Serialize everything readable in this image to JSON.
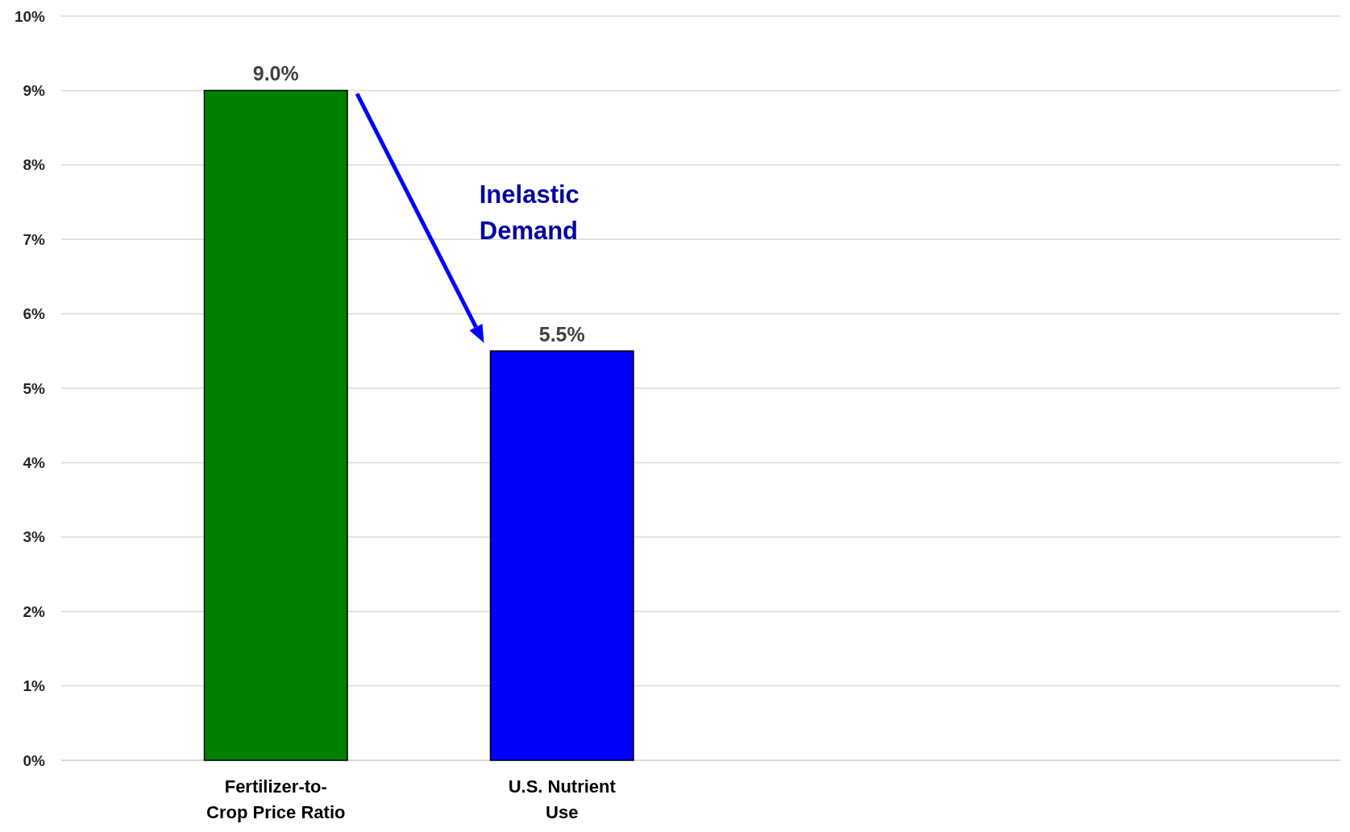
{
  "chart_data": {
    "type": "bar",
    "categories": [
      "Fertilizer-to-\nCrop Price Ratio",
      "U.S. Nutrient\nUse"
    ],
    "values": [
      9.0,
      5.5
    ],
    "colors": [
      "#008000",
      "#0000ff"
    ],
    "value_labels": [
      "9.0%",
      "5.5%"
    ],
    "ylim": [
      0,
      10
    ],
    "yticks": [
      {
        "value": 0,
        "label": "0%"
      },
      {
        "value": 1,
        "label": "1%"
      },
      {
        "value": 2,
        "label": "2%"
      },
      {
        "value": 3,
        "label": "3%"
      },
      {
        "value": 4,
        "label": "4%"
      },
      {
        "value": 5,
        "label": "5%"
      },
      {
        "value": 6,
        "label": "6%"
      },
      {
        "value": 7,
        "label": "7%"
      },
      {
        "value": 8,
        "label": "8%"
      },
      {
        "value": 9,
        "label": "9%"
      },
      {
        "value": 10,
        "label": "10%"
      }
    ],
    "grid": "y",
    "annotations": [
      "Inelastic\nDemand"
    ]
  }
}
